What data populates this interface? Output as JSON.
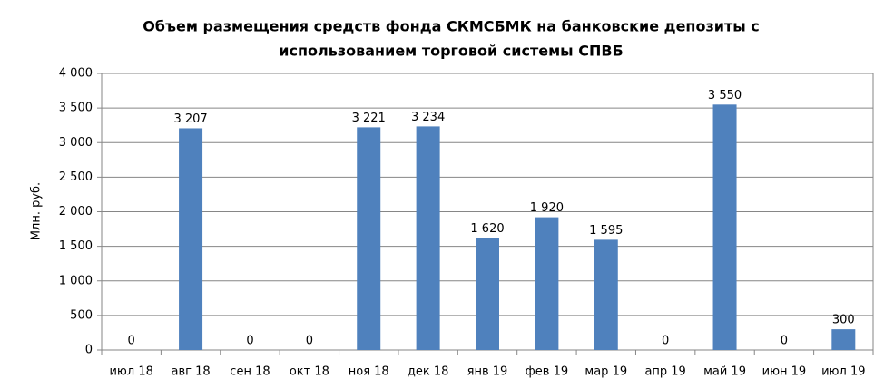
{
  "chart_data": {
    "type": "bar",
    "title": [
      "Объем размещения средств фонда СКМСБМК на банковские депозиты с",
      "использованием торговой системы СПВБ"
    ],
    "y_label": "Млн. руб.",
    "categories": [
      "июл 18",
      "авг 18",
      "сен 18",
      "окт 18",
      "ноя 18",
      "дек 18",
      "янв 19",
      "фев 19",
      "мар 19",
      "апр 19",
      "май 19",
      "июн 19",
      "июл 19"
    ],
    "values": [
      0,
      3207,
      0,
      0,
      3221,
      3234,
      1620,
      1920,
      1595,
      0,
      3550,
      0,
      300
    ],
    "value_labels": [
      "0",
      "3 207",
      "0",
      "0",
      "3 221",
      "3 234",
      "1 620",
      "1 920",
      "1 595",
      "0",
      "3 550",
      "0",
      "300"
    ],
    "color": "#4f81bd",
    "ylim": [
      0,
      4000
    ],
    "yticks": [
      0,
      500,
      {
        "value": 1000,
        "label": "1 000"
      },
      {
        "value": 1500,
        "label": "1 500"
      },
      {
        "value": 2000,
        "label": "2 000"
      },
      {
        "value": 2500,
        "label": "2 500"
      },
      {
        "value": 3000,
        "label": "3 000"
      },
      {
        "value": 3500,
        "label": "3 500"
      },
      {
        "value": 4000,
        "label": "4 000"
      }
    ],
    "grid": true
  }
}
